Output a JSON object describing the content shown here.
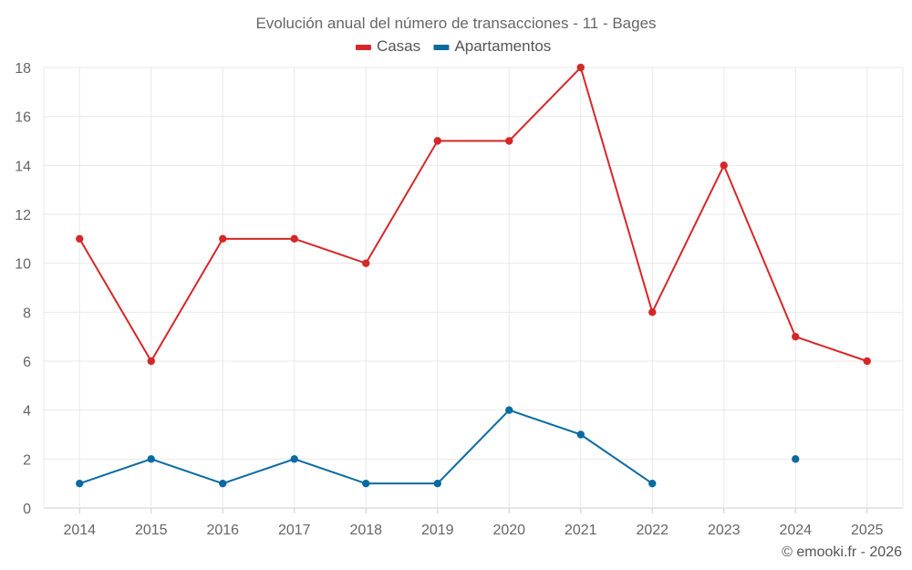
{
  "chart_data": {
    "type": "line",
    "title": "Evolución anual del número de transacciones - 11 - Bages",
    "categories": [
      "2014",
      "2015",
      "2016",
      "2017",
      "2018",
      "2019",
      "2020",
      "2021",
      "2022",
      "2023",
      "2024",
      "2025"
    ],
    "series": [
      {
        "name": "Casas",
        "color": "#d62728",
        "values": [
          11,
          6,
          11,
          11,
          10,
          15,
          15,
          18,
          8,
          14,
          7,
          6
        ]
      },
      {
        "name": "Apartamentos",
        "color": "#0a6aa1",
        "values": [
          1,
          2,
          1,
          2,
          1,
          1,
          4,
          3,
          1,
          null,
          2,
          null
        ]
      }
    ],
    "ylim": [
      0,
      18
    ],
    "yticks": [
      0,
      2,
      4,
      6,
      8,
      10,
      12,
      14,
      16,
      18
    ],
    "xlabel": "",
    "ylabel": "",
    "grid": true,
    "legend_position": "top-center"
  },
  "credit": "© emooki.fr - 2026"
}
